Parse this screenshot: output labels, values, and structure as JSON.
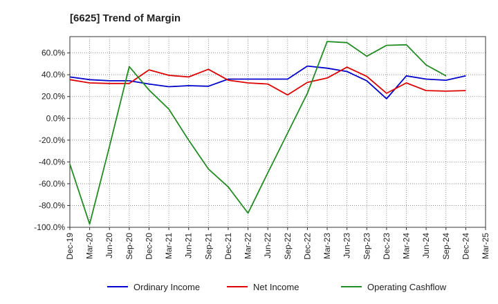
{
  "chart_data": {
    "type": "line",
    "title": "[6625]  Trend of Margin",
    "xlabel": "",
    "ylabel": "",
    "x_ticks": [
      "Dec-19",
      "Mar-20",
      "Jun-20",
      "Sep-20",
      "Dec-20",
      "Mar-21",
      "Jun-21",
      "Sep-21",
      "Dec-21",
      "Mar-22",
      "Jun-22",
      "Sep-22",
      "Dec-22",
      "Mar-23",
      "Jun-23",
      "Sep-23",
      "Dec-23",
      "Mar-24",
      "Jun-24",
      "Sep-24",
      "Dec-24",
      "Mar-25"
    ],
    "y_ticks": [
      60,
      40,
      20,
      0,
      -20,
      -40,
      -60,
      -80,
      -100
    ],
    "y_tick_labels": [
      "60.0%",
      "40.0%",
      "20.0%",
      "0.0%",
      "-20.0%",
      "-40.0%",
      "-60.0%",
      "-80.0%",
      "-100.0%"
    ],
    "ylim": [
      -100,
      75
    ],
    "grid": true,
    "legend_position": "bottom",
    "series": [
      {
        "name": "Ordinary Income",
        "color": "#0000cc",
        "x": [
          "Dec-19",
          "Mar-20",
          "Jun-20",
          "Sep-20",
          "Dec-20",
          "Mar-21",
          "Jun-21",
          "Sep-21",
          "Dec-21",
          "Mar-22",
          "Jun-22",
          "Sep-22",
          "Dec-22",
          "Mar-23",
          "Jun-23",
          "Sep-23",
          "Dec-23",
          "Mar-24",
          "Jun-24",
          "Sep-24",
          "Dec-24"
        ],
        "y": [
          38,
          35.5,
          34.5,
          34.5,
          31.5,
          29,
          30,
          29.5,
          36,
          36,
          36,
          36,
          48,
          46,
          43,
          34.5,
          18,
          39,
          36,
          35,
          39
        ]
      },
      {
        "name": "Net Income",
        "color": "#dd0000",
        "x": [
          "Dec-19",
          "Mar-20",
          "Jun-20",
          "Sep-20",
          "Dec-20",
          "Mar-21",
          "Jun-21",
          "Sep-21",
          "Dec-21",
          "Mar-22",
          "Jun-22",
          "Sep-22",
          "Dec-22",
          "Mar-23",
          "Jun-23",
          "Sep-23",
          "Dec-23",
          "Mar-24",
          "Jun-24",
          "Sep-24",
          "Dec-24"
        ],
        "y": [
          35.5,
          32.5,
          32,
          32,
          44.5,
          39.5,
          38,
          45,
          35,
          32.5,
          31.5,
          21.5,
          33,
          37,
          47,
          38.5,
          23,
          32.5,
          25.5,
          25,
          25.5
        ]
      },
      {
        "name": "Operating Cashflow",
        "color": "#228b22",
        "x": [
          "Dec-19",
          "Mar-20",
          "Jun-20",
          "Sep-20",
          "Dec-20",
          "Mar-21",
          "Jun-21",
          "Sep-21",
          "Dec-21",
          "Mar-22",
          "Jun-22",
          "Sep-22",
          "Dec-22",
          "Mar-23",
          "Jun-23",
          "Sep-23",
          "Dec-23",
          "Mar-24",
          "Jun-24",
          "Sep-24"
        ],
        "y": [
          -42,
          -97,
          -26,
          47.5,
          26,
          8.5,
          -20,
          -46.5,
          -63,
          -87,
          -50,
          -13.5,
          23,
          70.5,
          69.5,
          57,
          67,
          67.5,
          49,
          39
        ]
      }
    ]
  }
}
